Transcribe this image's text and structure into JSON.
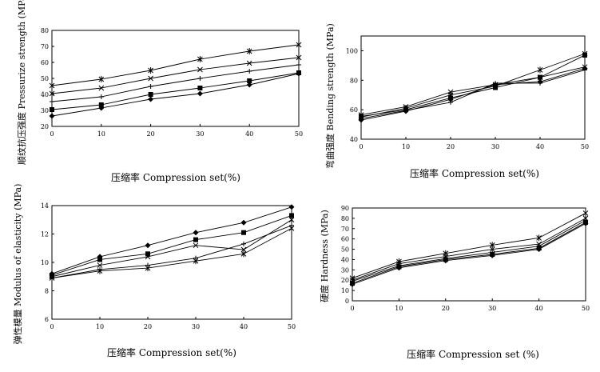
{
  "chart_data": [
    {
      "type": "line",
      "title": "",
      "xlabel": "压缩率 Compression set(%)",
      "ylabel": "顺纹抗压强度 Pressurize strength  (MPa)",
      "x": [
        0,
        10,
        20,
        30,
        40,
        50
      ],
      "xlim": [
        0,
        50
      ],
      "ylim": [
        20,
        80
      ],
      "xticks": [
        "0",
        "10",
        "20",
        "30",
        "40",
        "50"
      ],
      "yticks": [
        "20",
        "30",
        "40",
        "50",
        "60",
        "70",
        "80"
      ],
      "series": [
        {
          "name": "series-1",
          "marker": "asterisk",
          "values": [
            45.5,
            49.5,
            55,
            62,
            67,
            71
          ]
        },
        {
          "name": "series-2",
          "marker": "x",
          "values": [
            40.5,
            44,
            50,
            55.5,
            59.5,
            63
          ]
        },
        {
          "name": "series-3",
          "marker": "plus",
          "values": [
            35.5,
            38.5,
            45,
            50,
            54.5,
            58.5
          ]
        },
        {
          "name": "series-4",
          "marker": "square",
          "values": [
            30.5,
            33.5,
            40,
            44,
            48.5,
            53.5
          ]
        },
        {
          "name": "series-5",
          "marker": "diamond",
          "values": [
            26.5,
            31.5,
            37,
            40.5,
            46,
            53
          ]
        }
      ]
    },
    {
      "type": "line",
      "title": "",
      "xlabel": "压缩率  Compression set(%)",
      "ylabel": "弯曲强度 Bending strength  (MPa)",
      "x": [
        0,
        10,
        20,
        30,
        40,
        50
      ],
      "xlim": [
        0,
        50
      ],
      "ylim": [
        40,
        110
      ],
      "xticks": [
        "0",
        "10",
        "20",
        "30",
        "40",
        "50"
      ],
      "yticks": [
        "40",
        "60",
        "80",
        "100"
      ],
      "series": [
        {
          "name": "series-1",
          "marker": "asterisk",
          "values": [
            55,
            61,
            70,
            76,
            87,
            98
          ]
        },
        {
          "name": "series-2",
          "marker": "x",
          "values": [
            56.5,
            62,
            72,
            77,
            82,
            89
          ]
        },
        {
          "name": "series-3",
          "marker": "plus",
          "values": [
            54,
            59.5,
            65,
            78,
            78,
            87
          ]
        },
        {
          "name": "series-4",
          "marker": "square",
          "values": [
            55.5,
            60,
            68,
            75,
            82,
            97
          ]
        },
        {
          "name": "series-5",
          "marker": "diamond",
          "values": [
            53,
            59,
            67,
            77,
            79,
            88
          ]
        }
      ]
    },
    {
      "type": "line",
      "title": "",
      "xlabel": "压缩率 Compression set(%)",
      "ylabel": "弹性模量 Modulus of elasticity  (MPa)",
      "x": [
        0,
        10,
        20,
        30,
        40,
        50
      ],
      "xlim": [
        0,
        50
      ],
      "ylim": [
        6,
        14
      ],
      "xticks": [
        "0",
        "10",
        "20",
        "30",
        "40",
        "50"
      ],
      "yticks": [
        "6",
        "8",
        "10",
        "12",
        "14"
      ],
      "series": [
        {
          "name": "series-1",
          "marker": "diamond",
          "values": [
            9.2,
            10.4,
            11.2,
            12.1,
            12.8,
            13.9
          ]
        },
        {
          "name": "series-2",
          "marker": "square",
          "values": [
            9.1,
            10.2,
            10.6,
            11.6,
            12.1,
            13.3
          ]
        },
        {
          "name": "series-3",
          "marker": "x",
          "values": [
            9.0,
            9.8,
            10.4,
            11.2,
            10.9,
            13.0
          ]
        },
        {
          "name": "series-4",
          "marker": "plus",
          "values": [
            8.9,
            9.5,
            9.8,
            10.3,
            11.3,
            12.6
          ]
        },
        {
          "name": "series-5",
          "marker": "asterisk",
          "values": [
            8.9,
            9.4,
            9.6,
            10.1,
            10.6,
            12.4
          ]
        }
      ]
    },
    {
      "type": "line",
      "title": "",
      "xlabel": "压缩率 Compression set (%)",
      "ylabel": "硬度 Hardness  (MPa)",
      "x": [
        0,
        10,
        20,
        30,
        40,
        50
      ],
      "xlim": [
        0,
        50
      ],
      "ylim": [
        0,
        90
      ],
      "xticks": [
        "0",
        "10",
        "20",
        "30",
        "40",
        "50"
      ],
      "yticks": [
        "0",
        "10",
        "20",
        "30",
        "40",
        "50",
        "60",
        "70",
        "80",
        "90"
      ],
      "series": [
        {
          "name": "series-1",
          "marker": "asterisk",
          "values": [
            22,
            38,
            46,
            54,
            61,
            85
          ]
        },
        {
          "name": "series-2",
          "marker": "x",
          "values": [
            20,
            36,
            43,
            50,
            55,
            80
          ]
        },
        {
          "name": "series-3",
          "marker": "plus",
          "values": [
            19,
            34,
            41,
            47,
            53,
            78
          ]
        },
        {
          "name": "series-4",
          "marker": "square",
          "values": [
            17,
            33,
            40,
            45,
            51,
            76
          ]
        },
        {
          "name": "series-5",
          "marker": "diamond",
          "values": [
            16,
            32,
            39,
            44,
            50,
            75
          ]
        }
      ]
    }
  ]
}
